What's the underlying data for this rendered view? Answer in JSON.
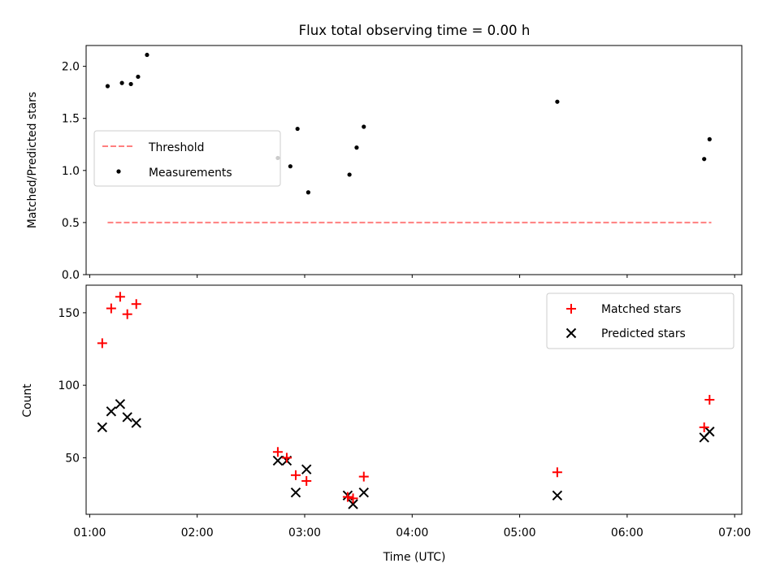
{
  "chart_data": [
    {
      "type": "scatter",
      "title": "Flux total observing time = 0.00 h",
      "ylabel": "Matched/Predicted stars",
      "xlim": [
        "00:58",
        "07:04"
      ],
      "ylim": [
        0,
        2.2
      ],
      "yticks": [
        "0.0",
        "0.5",
        "1.0",
        "1.5",
        "2.0"
      ],
      "yticks_values": [
        0,
        0.5,
        1.0,
        1.5,
        2.0
      ],
      "legend": {
        "placement": "center-left",
        "entries": [
          "Threshold",
          "Measurements"
        ]
      },
      "threshold": {
        "name": "Threshold",
        "value": 0.5,
        "x_start": "01:10",
        "x_end": "06:47",
        "color": "#ff7f7f",
        "style": "dashed"
      },
      "series": [
        {
          "name": "Measurements",
          "marker": "dot",
          "color": "#000000",
          "x": [
            "01:10",
            "01:18",
            "01:23",
            "01:27",
            "01:32",
            "02:45",
            "02:52",
            "02:56",
            "03:02",
            "03:25",
            "03:29",
            "03:33",
            "05:21",
            "06:43",
            "06:46"
          ],
          "y": [
            1.81,
            1.84,
            1.83,
            1.9,
            2.11,
            1.12,
            1.04,
            1.4,
            0.79,
            0.96,
            1.22,
            1.42,
            1.66,
            1.11,
            1.3
          ]
        }
      ]
    },
    {
      "type": "scatter",
      "xlabel": "Time (UTC)",
      "ylabel": "Count",
      "xlim": [
        "00:58",
        "07:04"
      ],
      "ylim": [
        11,
        169
      ],
      "xticks": [
        "01:00",
        "02:00",
        "03:00",
        "04:00",
        "05:00",
        "06:00",
        "07:00"
      ],
      "yticks": [
        "50",
        "100",
        "150"
      ],
      "yticks_values": [
        50,
        100,
        150
      ],
      "legend": {
        "placement": "top-right",
        "entries": [
          "Matched stars",
          "Predicted stars"
        ]
      },
      "series": [
        {
          "name": "Matched stars",
          "marker": "plus",
          "color": "#ff0000",
          "x": [
            "01:07",
            "01:12",
            "01:17",
            "01:21",
            "01:26",
            "02:45",
            "02:50",
            "02:55",
            "03:01",
            "03:24",
            "03:27",
            "03:33",
            "05:21",
            "06:43",
            "06:46"
          ],
          "y": [
            129,
            153,
            161,
            149,
            156,
            54,
            50,
            38,
            34,
            23,
            22,
            37,
            40,
            71,
            90
          ]
        },
        {
          "name": "Predicted stars",
          "marker": "x",
          "color": "#000000",
          "x": [
            "01:07",
            "01:12",
            "01:17",
            "01:21",
            "01:26",
            "02:45",
            "02:50",
            "02:55",
            "03:01",
            "03:24",
            "03:27",
            "03:33",
            "05:21",
            "06:43",
            "06:46"
          ],
          "y": [
            71,
            82,
            87,
            78,
            74,
            48,
            48,
            26,
            42,
            24,
            18,
            26,
            24,
            64,
            68
          ]
        }
      ]
    }
  ]
}
